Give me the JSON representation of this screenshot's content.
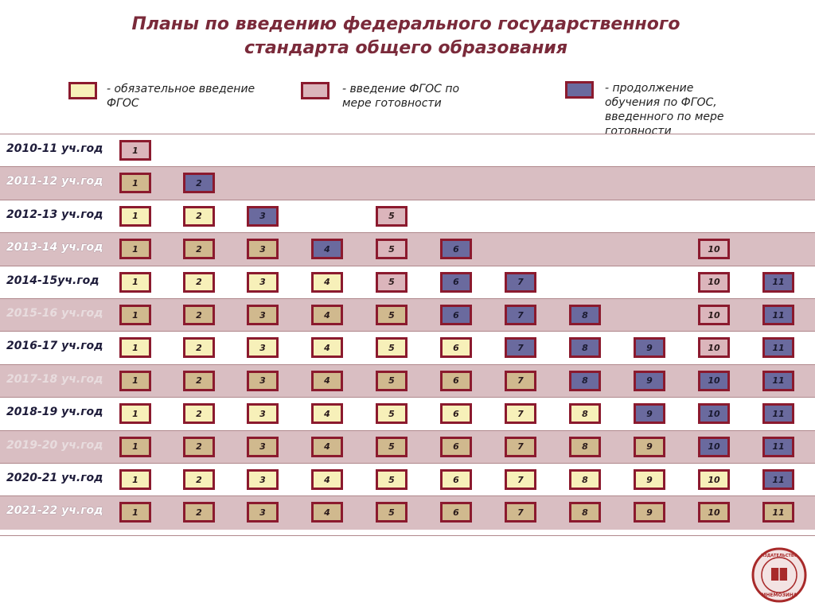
{
  "title": {
    "line1": "Планы по введению федерального государственного",
    "line2": "стандарта общего образования"
  },
  "legend": [
    {
      "key": "yellow",
      "text": "-  обязательное введение\nФГОС"
    },
    {
      "key": "pink",
      "text": "-  введение ФГОС по\nмере готовности"
    },
    {
      "key": "purple",
      "text": "-  продолжение\nобучения по ФГОС,\nвведенного по мере\nготовности"
    }
  ],
  "colors": {
    "yellow": "#f7f0b9",
    "pink": "#dbb5bb",
    "purple": "#6a6a9e",
    "tan": "#d0b98e",
    "border": "#8b1a2e",
    "title": "#7a2a3a",
    "band": "#d9bec2"
  },
  "rows": [
    {
      "year": "2010-11 уч.год",
      "style": "plain",
      "cells": [
        [
          "1",
          "pink"
        ]
      ]
    },
    {
      "year": "2011-12 уч.год",
      "style": "band",
      "cells": [
        [
          "1",
          "tan"
        ],
        [
          "2",
          "purple"
        ]
      ]
    },
    {
      "year": "2012-13 уч.год",
      "style": "plain",
      "cells": [
        [
          "1",
          "yellow"
        ],
        [
          "2",
          "yellow"
        ],
        [
          "3",
          "purple"
        ],
        [
          "5",
          "pink"
        ]
      ]
    },
    {
      "year": "2013-14 уч.год",
      "style": "band",
      "cells": [
        [
          "1",
          "tan"
        ],
        [
          "2",
          "tan"
        ],
        [
          "3",
          "tan"
        ],
        [
          "4",
          "purple"
        ],
        [
          "5",
          "pink"
        ],
        [
          "6",
          "purple"
        ],
        [
          "10",
          "pink"
        ]
      ]
    },
    {
      "year": "2014-15уч.год",
      "style": "plain",
      "cells": [
        [
          "1",
          "yellow"
        ],
        [
          "2",
          "yellow"
        ],
        [
          "3",
          "yellow"
        ],
        [
          "4",
          "yellow"
        ],
        [
          "5",
          "pink"
        ],
        [
          "6",
          "purple"
        ],
        [
          "7",
          "purple"
        ],
        [
          "10",
          "pink"
        ],
        [
          "11",
          "purple"
        ]
      ]
    },
    {
      "year": "2015-16 уч.год",
      "style": "faded",
      "cells": [
        [
          "1",
          "tan"
        ],
        [
          "2",
          "tan"
        ],
        [
          "3",
          "tan"
        ],
        [
          "4",
          "tan"
        ],
        [
          "5",
          "tan"
        ],
        [
          "6",
          "purple"
        ],
        [
          "7",
          "purple"
        ],
        [
          "8",
          "purple"
        ],
        [
          "10",
          "pink"
        ],
        [
          "11",
          "purple"
        ]
      ]
    },
    {
      "year": "2016-17 уч.год",
      "style": "plain",
      "cells": [
        [
          "1",
          "yellow"
        ],
        [
          "2",
          "yellow"
        ],
        [
          "3",
          "yellow"
        ],
        [
          "4",
          "yellow"
        ],
        [
          "5",
          "yellow"
        ],
        [
          "6",
          "yellow"
        ],
        [
          "7",
          "purple"
        ],
        [
          "8",
          "purple"
        ],
        [
          "9",
          "purple"
        ],
        [
          "10",
          "pink"
        ],
        [
          "11",
          "purple"
        ]
      ]
    },
    {
      "year": "2017-18 уч.год",
      "style": "faded",
      "cells": [
        [
          "1",
          "tan"
        ],
        [
          "2",
          "tan"
        ],
        [
          "3",
          "tan"
        ],
        [
          "4",
          "tan"
        ],
        [
          "5",
          "tan"
        ],
        [
          "6",
          "tan"
        ],
        [
          "7",
          "tan"
        ],
        [
          "8",
          "purple"
        ],
        [
          "9",
          "purple"
        ],
        [
          "10",
          "purple"
        ],
        [
          "11",
          "purple"
        ]
      ]
    },
    {
      "year": "2018-19 уч.год",
      "style": "plain",
      "cells": [
        [
          "1",
          "yellow"
        ],
        [
          "2",
          "yellow"
        ],
        [
          "3",
          "yellow"
        ],
        [
          "4",
          "yellow"
        ],
        [
          "5",
          "yellow"
        ],
        [
          "6",
          "yellow"
        ],
        [
          "7",
          "yellow"
        ],
        [
          "8",
          "yellow"
        ],
        [
          "9",
          "purple"
        ],
        [
          "10",
          "purple"
        ],
        [
          "11",
          "purple"
        ]
      ]
    },
    {
      "year": "2019-20 уч.год",
      "style": "faded",
      "cells": [
        [
          "1",
          "tan"
        ],
        [
          "2",
          "tan"
        ],
        [
          "3",
          "tan"
        ],
        [
          "4",
          "tan"
        ],
        [
          "5",
          "tan"
        ],
        [
          "6",
          "tan"
        ],
        [
          "7",
          "tan"
        ],
        [
          "8",
          "tan"
        ],
        [
          "9",
          "tan"
        ],
        [
          "10",
          "purple"
        ],
        [
          "11",
          "purple"
        ]
      ]
    },
    {
      "year": "2020-21 уч.год",
      "style": "plain",
      "cells": [
        [
          "1",
          "yellow"
        ],
        [
          "2",
          "yellow"
        ],
        [
          "3",
          "yellow"
        ],
        [
          "4",
          "yellow"
        ],
        [
          "5",
          "yellow"
        ],
        [
          "6",
          "yellow"
        ],
        [
          "7",
          "yellow"
        ],
        [
          "8",
          "yellow"
        ],
        [
          "9",
          "yellow"
        ],
        [
          "10",
          "yellow"
        ],
        [
          "11",
          "purple"
        ]
      ]
    },
    {
      "year": "2021-22 уч.год",
      "style": "band",
      "cells": [
        [
          "1",
          "tan"
        ],
        [
          "2",
          "tan"
        ],
        [
          "3",
          "tan"
        ],
        [
          "4",
          "tan"
        ],
        [
          "5",
          "tan"
        ],
        [
          "6",
          "tan"
        ],
        [
          "7",
          "tan"
        ],
        [
          "8",
          "tan"
        ],
        [
          "9",
          "tan"
        ],
        [
          "10",
          "tan"
        ],
        [
          "11",
          "tan"
        ]
      ]
    }
  ],
  "seal": {
    "top": "ИЗДАТЕЛЬСТВО",
    "bottom": "МНЕМОЗИНА"
  }
}
